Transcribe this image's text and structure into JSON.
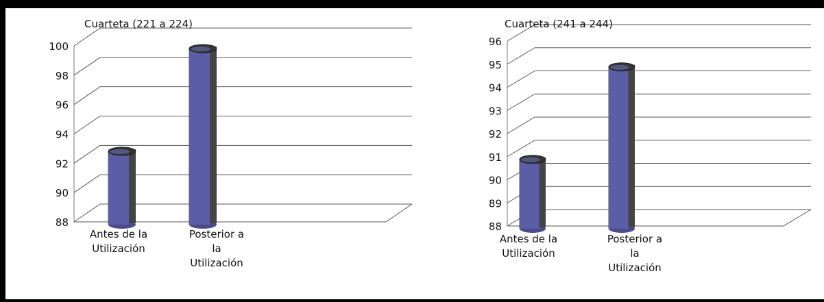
{
  "chart_data": [
    {
      "type": "bar",
      "title": "Cuarteta  (221 a 224)",
      "categories": [
        "Antes de la Utilización",
        "Posterior a la Utilización"
      ],
      "category_lines": [
        [
          "Antes de la",
          "Utilización"
        ],
        [
          "Posterior a",
          "la",
          "Utilización"
        ]
      ],
      "values": [
        93,
        100
      ],
      "ylim": [
        88,
        100
      ],
      "yticks": [
        "88",
        "90",
        "92",
        "94",
        "96",
        "98",
        "100"
      ],
      "grid": true,
      "bar_color": "#5B5EA6"
    },
    {
      "type": "bar",
      "title": "Cuarteta  (241 a 244)",
      "categories": [
        "Antes de la Utilización",
        "Posterior a la Utilización"
      ],
      "category_lines": [
        [
          "Antes de la",
          "Utilización"
        ],
        [
          "Posterior a",
          "la",
          "Utilización"
        ]
      ],
      "values": [
        91,
        95
      ],
      "ylim": [
        88,
        96
      ],
      "yticks": [
        "88",
        "89",
        "90",
        "91",
        "92",
        "93",
        "94",
        "95",
        "96"
      ],
      "grid": true,
      "bar_color": "#5B5EA6"
    }
  ]
}
